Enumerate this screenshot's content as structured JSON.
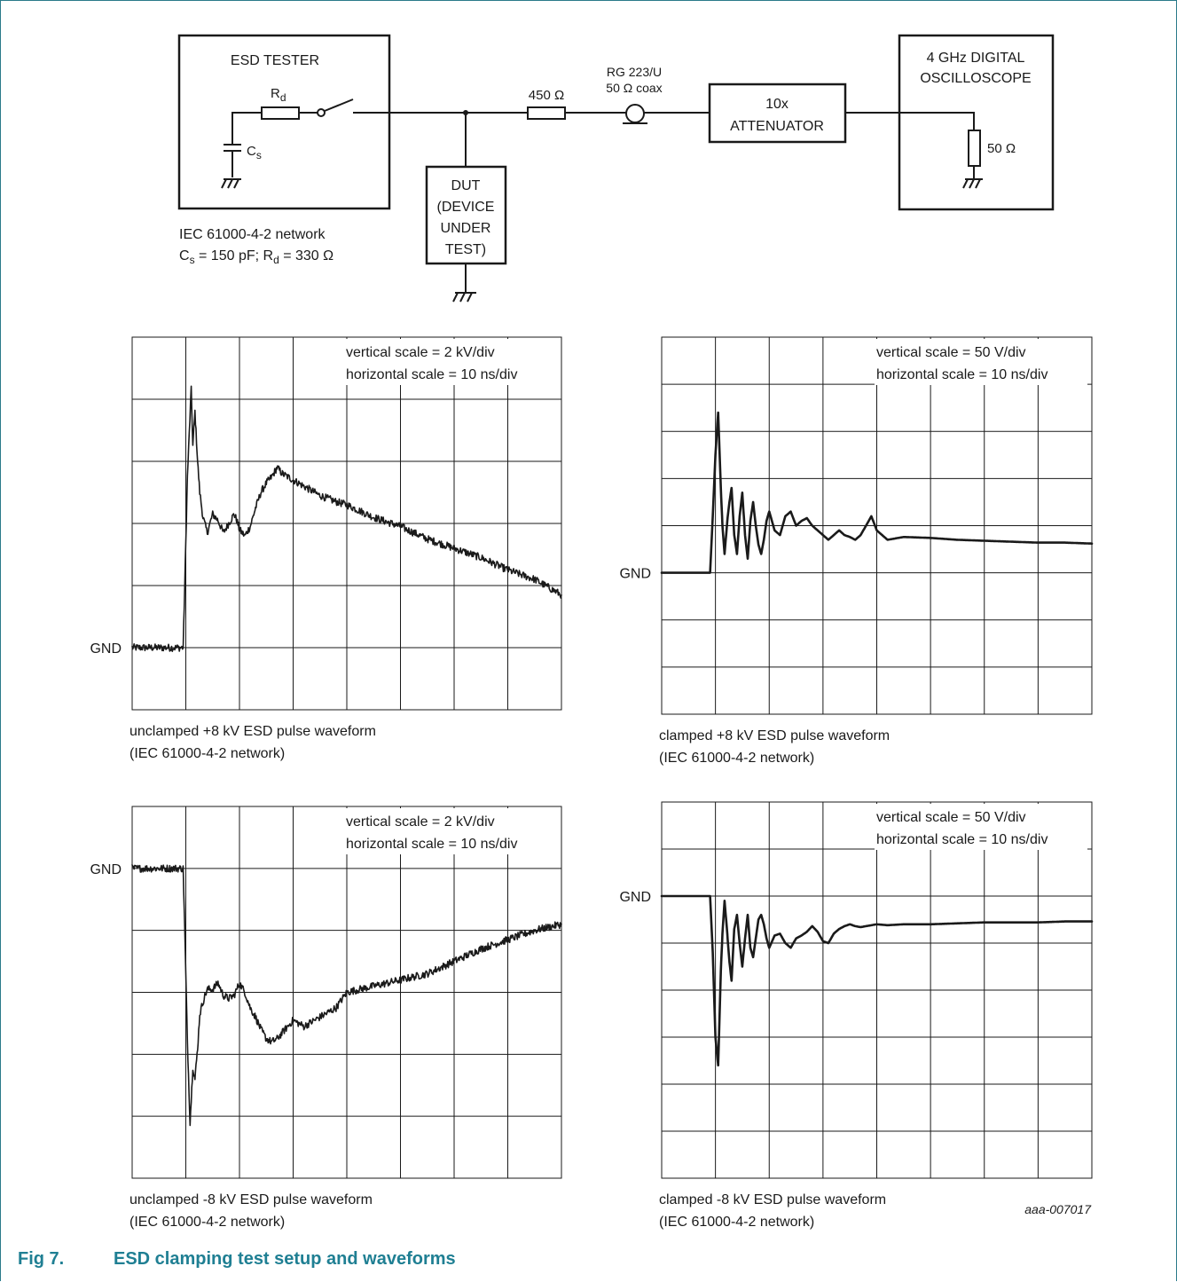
{
  "schematic": {
    "esd_tester_title": "ESD TESTER",
    "rd_main": "R",
    "rd_sub": "d",
    "cs_main": "C",
    "cs_sub": "s",
    "network_line1": "IEC 61000-4-2 network",
    "network_line2": {
      "cs_main": "C",
      "cs_sub": "s",
      "cs_value": " = 150 pF; ",
      "rd_main": "R",
      "rd_sub": "d",
      "rd_value": " = 330 Ω"
    },
    "dut_lines": [
      "DUT",
      "(DEVICE",
      "UNDER",
      "TEST)"
    ],
    "resistor_label": "450 Ω",
    "coax_line1": "RG 223/U",
    "coax_line2": "50 Ω coax",
    "attenuator_lines": [
      "10x",
      "ATTENUATOR"
    ],
    "scope_lines": [
      "4 GHz DIGITAL",
      "OSCILLOSCOPE"
    ],
    "scope_resistor": "50 Ω"
  },
  "chart_data": [
    {
      "type": "line",
      "title": "unclamped +8 kV ESD pulse waveform",
      "subtitle": "(IEC 61000-4-2 network)",
      "scale_lines": [
        "vertical scale = 2 kV/div",
        "horizontal scale = 10 ns/div"
      ],
      "gnd_label": "GND",
      "divisions": {
        "x": 8,
        "y": 6
      },
      "gnd_div": 5,
      "x_unit": "ns",
      "y_unit": "kV",
      "x_per_div": 10,
      "y_per_div": 2,
      "noise_kv": 0.12,
      "series": [
        {
          "x": [
            0,
            9.5,
            9.8,
            10.3,
            11.0,
            11.3,
            11.7,
            12.2,
            12.6,
            13.2,
            14,
            15,
            16,
            17,
            18,
            19,
            19.5,
            20,
            21,
            22,
            23,
            24,
            25,
            26,
            27,
            28,
            30,
            32,
            35,
            38,
            40,
            45,
            50,
            55,
            60,
            65,
            70,
            75,
            80
          ],
          "y": [
            0,
            0,
            2.0,
            5.5,
            8.3,
            6.5,
            7.6,
            6.0,
            5.0,
            4.2,
            3.7,
            4.3,
            4.1,
            3.7,
            4.0,
            4.3,
            4.1,
            3.8,
            3.6,
            3.9,
            4.5,
            5.0,
            5.3,
            5.5,
            5.8,
            5.6,
            5.4,
            5.2,
            4.9,
            4.7,
            4.6,
            4.2,
            3.9,
            3.5,
            3.2,
            2.9,
            2.5,
            2.2,
            1.7
          ]
        }
      ]
    },
    {
      "type": "line",
      "title": "clamped +8 kV ESD pulse waveform",
      "subtitle": "(IEC 61000-4-2 network)",
      "scale_lines": [
        "vertical scale = 50 V/div",
        "horizontal scale = 10 ns/div"
      ],
      "gnd_label": "GND",
      "divisions": {
        "x": 8,
        "y": 8
      },
      "gnd_div": 5,
      "x_unit": "ns",
      "y_unit": "V",
      "x_per_div": 10,
      "y_per_div": 50,
      "noise_kv": 0,
      "series": [
        {
          "x": [
            0,
            8.5,
            9.0,
            9.5,
            10.0,
            10.5,
            11.0,
            11.3,
            11.7,
            12.2,
            12.6,
            13.0,
            13.5,
            14.0,
            14.5,
            15.0,
            15.5,
            16.0,
            16.5,
            17.0,
            17.5,
            18.0,
            18.5,
            19.0,
            19.5,
            20.0,
            21,
            22,
            23,
            24,
            25,
            26,
            27,
            28,
            29,
            30,
            31,
            32,
            33,
            34,
            35,
            36,
            37,
            38,
            39,
            40,
            42,
            45,
            50,
            55,
            60,
            65,
            70,
            75,
            80
          ],
          "y": [
            0,
            0,
            0,
            60,
            125,
            170,
            90,
            50,
            20,
            55,
            75,
            90,
            40,
            20,
            60,
            85,
            40,
            15,
            55,
            75,
            50,
            30,
            20,
            35,
            55,
            65,
            45,
            40,
            60,
            65,
            50,
            55,
            58,
            50,
            45,
            40,
            35,
            40,
            45,
            40,
            38,
            35,
            40,
            50,
            60,
            45,
            35,
            38,
            37,
            35,
            34,
            33,
            32,
            32,
            31
          ]
        }
      ]
    },
    {
      "type": "line",
      "title": "unclamped -8 kV ESD pulse waveform",
      "subtitle": "(IEC 61000-4-2 network)",
      "scale_lines": [
        "vertical scale = 2 kV/div",
        "horizontal scale = 10 ns/div"
      ],
      "gnd_label": "GND",
      "divisions": {
        "x": 8,
        "y": 6
      },
      "gnd_div": 1,
      "x_unit": "ns",
      "y_unit": "kV",
      "x_per_div": 10,
      "y_per_div": 2,
      "noise_kv": 0.12,
      "series": [
        {
          "x": [
            0,
            9.5,
            9.8,
            10.3,
            10.8,
            11.3,
            11.7,
            12.2,
            12.6,
            13.2,
            14,
            15,
            16,
            17,
            18,
            19,
            20,
            21,
            22,
            23,
            24,
            25,
            26,
            27,
            28,
            30,
            32,
            35,
            38,
            40,
            45,
            50,
            55,
            60,
            65,
            70,
            75,
            80
          ],
          "y": [
            0,
            0,
            -2.0,
            -5.6,
            -8.2,
            -6.4,
            -6.8,
            -5.8,
            -4.7,
            -4.3,
            -3.9,
            -3.9,
            -3.7,
            -4.1,
            -4.2,
            -4.1,
            -3.7,
            -4.0,
            -4.5,
            -4.8,
            -5.2,
            -5.5,
            -5.6,
            -5.5,
            -5.3,
            -4.9,
            -5.1,
            -4.8,
            -4.5,
            -4.0,
            -3.8,
            -3.6,
            -3.4,
            -3.0,
            -2.6,
            -2.3,
            -2.0,
            -1.8
          ]
        }
      ]
    },
    {
      "type": "line",
      "title": "clamped -8 kV ESD pulse waveform",
      "subtitle": "(IEC 61000-4-2 network)",
      "scale_lines": [
        "vertical scale = 50 V/div",
        "horizontal scale = 10 ns/div"
      ],
      "gnd_label": "GND",
      "divisions": {
        "x": 8,
        "y": 8
      },
      "gnd_div": 2,
      "x_unit": "ns",
      "y_unit": "V",
      "x_per_div": 10,
      "y_per_div": 50,
      "noise_kv": 0,
      "series": [
        {
          "x": [
            0,
            8.5,
            9.0,
            9.5,
            10.0,
            10.5,
            11.0,
            11.3,
            11.7,
            12.2,
            12.6,
            13.0,
            13.5,
            14.0,
            14.5,
            15.0,
            15.5,
            16.0,
            16.5,
            17.0,
            17.5,
            18.0,
            18.5,
            19.0,
            19.5,
            20.0,
            21,
            22,
            23,
            24,
            25,
            26,
            27,
            28,
            29,
            30,
            31,
            32,
            33,
            34,
            35,
            36,
            37,
            38,
            39,
            40,
            42,
            45,
            50,
            55,
            60,
            65,
            70,
            75,
            80
          ],
          "y": [
            0,
            0,
            0,
            -60,
            -150,
            -180,
            -80,
            -40,
            -5,
            -40,
            -70,
            -90,
            -35,
            -20,
            -50,
            -75,
            -45,
            -20,
            -55,
            -65,
            -45,
            -25,
            -20,
            -30,
            -45,
            -55,
            -42,
            -40,
            -50,
            -55,
            -45,
            -42,
            -38,
            -32,
            -38,
            -48,
            -50,
            -40,
            -35,
            -32,
            -30,
            -32,
            -33,
            -32,
            -31,
            -30,
            -31,
            -30,
            -30,
            -29,
            -28,
            -28,
            -28,
            -27,
            -27
          ]
        }
      ]
    }
  ],
  "corner_id": "aaa-007017",
  "figure": {
    "number": "Fig 7.",
    "title": "ESD clamping test setup and waveforms"
  }
}
